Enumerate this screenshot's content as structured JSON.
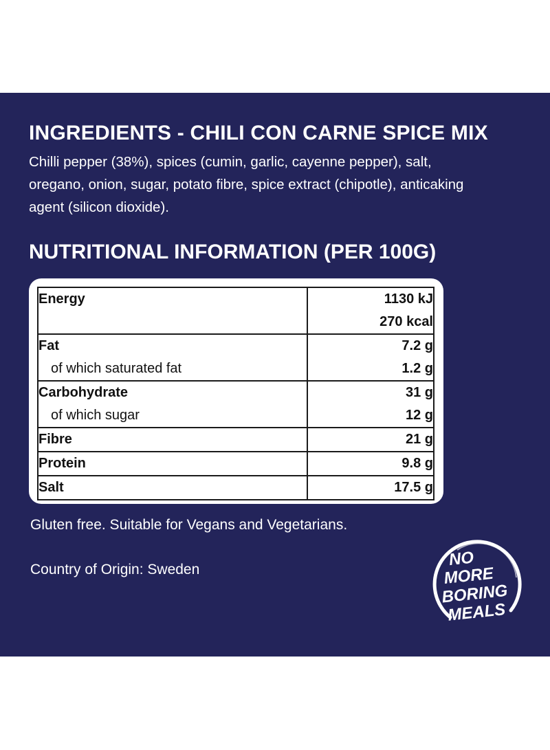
{
  "ingredients": {
    "heading": "INGREDIENTS - CHILI CON CARNE SPICE MIX",
    "text": "Chilli pepper (38%), spices (cumin, garlic, cayenne pepper), salt, oregano, onion, sugar, potato fibre, spice extract (chipotle), anticaking agent (silicon dioxide)."
  },
  "nutrition": {
    "heading": "NUTRITIONAL INFORMATION (PER 100G)",
    "energy": {
      "label": "Energy",
      "kj": "1130 kJ",
      "kcal": "270 kcal"
    },
    "fat": {
      "label": "Fat",
      "value": "7.2 g",
      "sub_label": "of which saturated fat",
      "sub_value": "1.2 g"
    },
    "carbohydrate": {
      "label": "Carbohydrate",
      "value": "31 g",
      "sub_label": "of which sugar",
      "sub_value": "12 g"
    },
    "fibre": {
      "label": "Fibre",
      "value": "21 g"
    },
    "protein": {
      "label": "Protein",
      "value": "9.8 g"
    },
    "salt": {
      "label": "Salt",
      "value": "17.5 g"
    }
  },
  "footer": {
    "dietary": "Gluten free. Suitable for Vegans and Vegetarians.",
    "origin": "Country of Origin: Sweden"
  },
  "logo": {
    "lines": [
      "NO",
      "MORE",
      "BORING",
      "MEALS"
    ]
  },
  "colors": {
    "panel_background": "#23245a",
    "text": "#ffffff",
    "table_background": "#ffffff",
    "table_text": "#111111"
  }
}
